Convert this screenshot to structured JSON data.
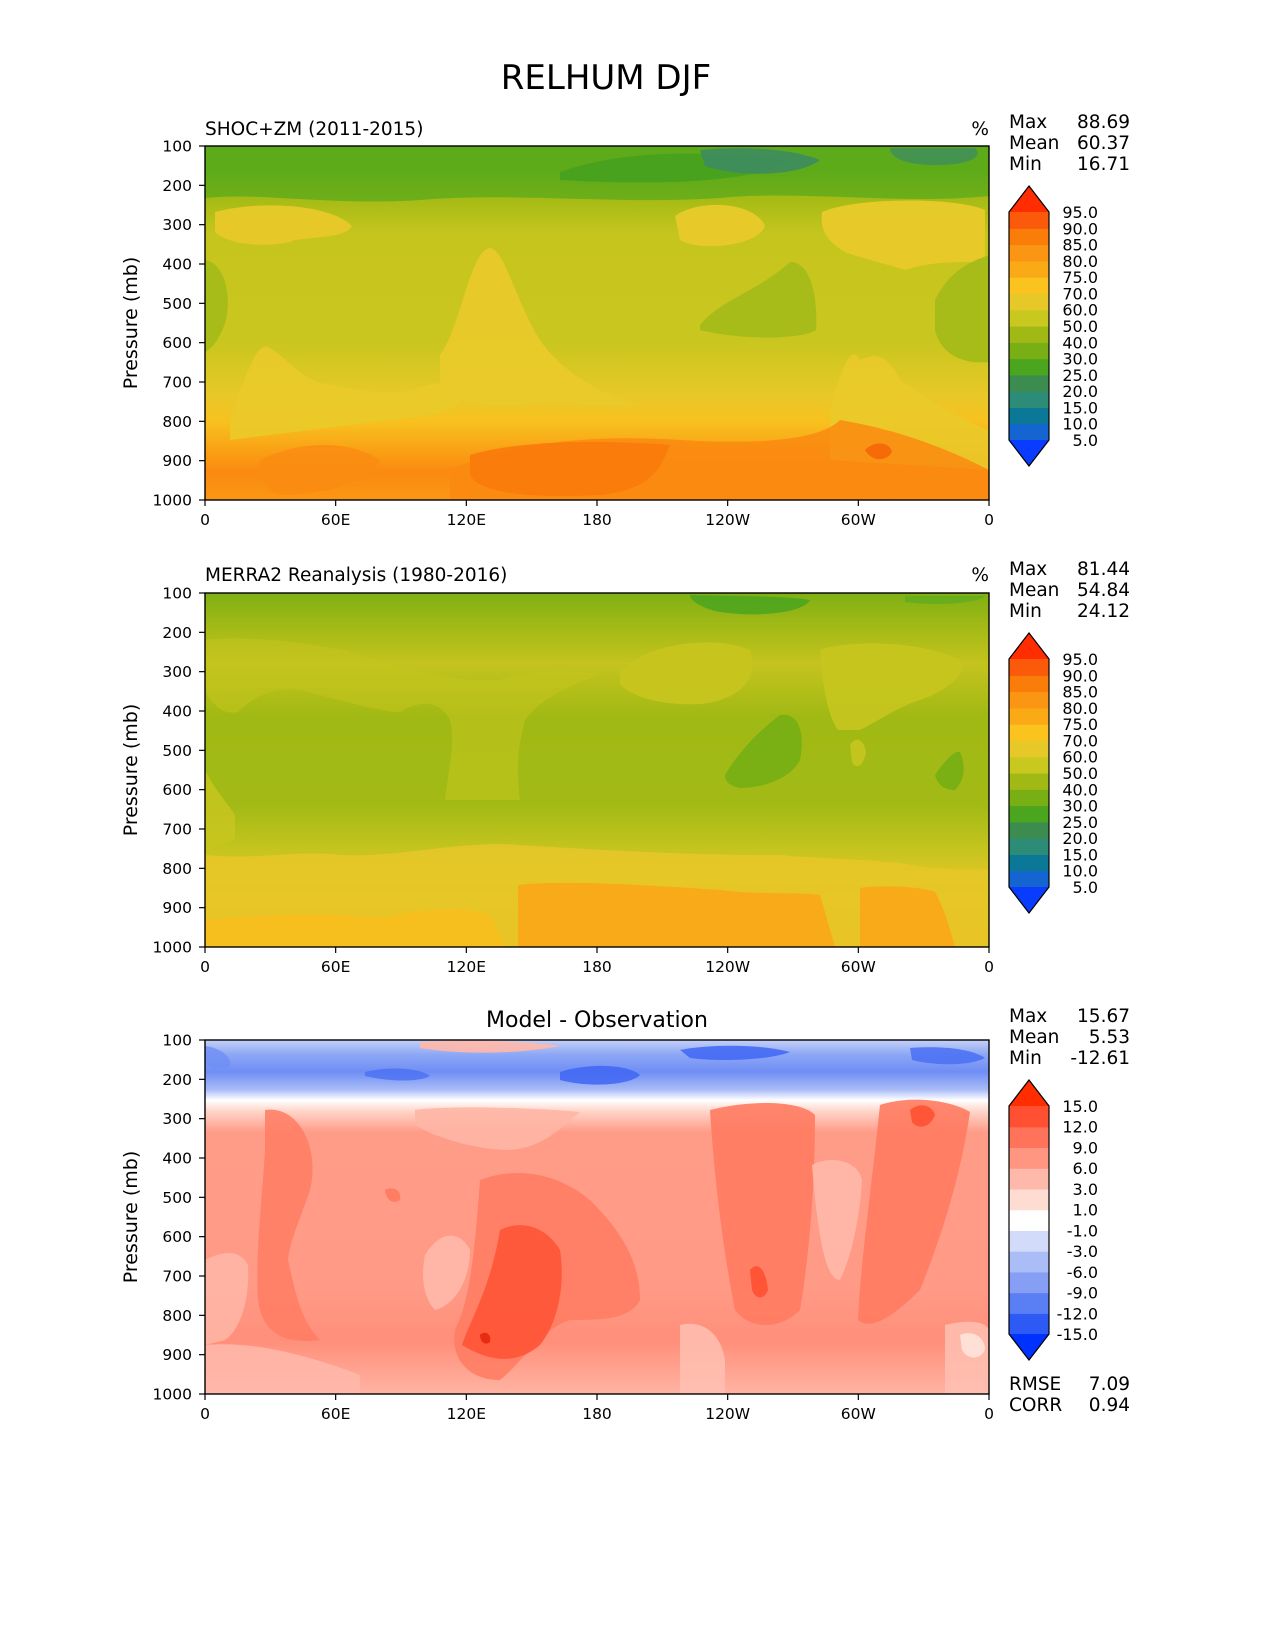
{
  "figure": {
    "title": "RELHUM DJF",
    "xtick_labels": [
      "0",
      "60E",
      "120E",
      "180",
      "120W",
      "60W",
      "0"
    ],
    "ytick_labels": [
      "100",
      "200",
      "300",
      "400",
      "500",
      "600",
      "700",
      "800",
      "900",
      "1000"
    ],
    "ylabel": "Pressure (mb)"
  },
  "chart_data": [
    {
      "type": "heatmap",
      "id": "model",
      "title": "SHOC+ZM (2011-2015)",
      "units": "%",
      "xlabel": "",
      "ylabel": "Pressure (mb)",
      "x": [
        0,
        60,
        120,
        180,
        240,
        300,
        360
      ],
      "xtick_labels": [
        "0",
        "60E",
        "120E",
        "180",
        "120W",
        "60W",
        "0"
      ],
      "y": [
        100,
        200,
        300,
        400,
        500,
        600,
        700,
        800,
        900,
        1000
      ],
      "ylim": [
        1000,
        100
      ],
      "stats": {
        "Max": "88.69",
        "Mean": "60.37",
        "Min": "16.71"
      },
      "colorbar": {
        "levels": [
          "5.0",
          "10.0",
          "15.0",
          "20.0",
          "25.0",
          "30.0",
          "40.0",
          "50.0",
          "60.0",
          "70.0",
          "75.0",
          "80.0",
          "85.0",
          "90.0",
          "95.0"
        ],
        "colors": [
          "#0a3cff",
          "#1464d2",
          "#0a7896",
          "#2d8c78",
          "#3c8c50",
          "#4ba51e",
          "#78af14",
          "#a0b914",
          "#c8c81e",
          "#e6c828",
          "#fac31e",
          "#faaa14",
          "#fa9614",
          "#fa7d0a",
          "#fa5a0a",
          "#ff2d00"
        ]
      }
    },
    {
      "type": "heatmap",
      "id": "obs",
      "title": "MERRA2 Reanalysis (1980-2016)",
      "units": "%",
      "xlabel": "",
      "ylabel": "Pressure (mb)",
      "x": [
        0,
        60,
        120,
        180,
        240,
        300,
        360
      ],
      "xtick_labels": [
        "0",
        "60E",
        "120E",
        "180",
        "120W",
        "60W",
        "0"
      ],
      "y": [
        100,
        200,
        300,
        400,
        500,
        600,
        700,
        800,
        900,
        1000
      ],
      "ylim": [
        1000,
        100
      ],
      "stats": {
        "Max": "81.44",
        "Mean": "54.84",
        "Min": "24.12"
      },
      "colorbar": {
        "levels": [
          "5.0",
          "10.0",
          "15.0",
          "20.0",
          "25.0",
          "30.0",
          "40.0",
          "50.0",
          "60.0",
          "70.0",
          "75.0",
          "80.0",
          "85.0",
          "90.0",
          "95.0"
        ],
        "colors": [
          "#0a3cff",
          "#1464d2",
          "#0a7896",
          "#2d8c78",
          "#3c8c50",
          "#4ba51e",
          "#78af14",
          "#a0b914",
          "#c8c81e",
          "#e6c828",
          "#fac31e",
          "#faaa14",
          "#fa9614",
          "#fa7d0a",
          "#fa5a0a",
          "#ff2d00"
        ]
      }
    },
    {
      "type": "heatmap",
      "id": "diff",
      "title": "Model - Observation",
      "units": "",
      "xlabel": "",
      "ylabel": "Pressure (mb)",
      "x": [
        0,
        60,
        120,
        180,
        240,
        300,
        360
      ],
      "xtick_labels": [
        "0",
        "60E",
        "120E",
        "180",
        "120W",
        "60W",
        "0"
      ],
      "y": [
        100,
        200,
        300,
        400,
        500,
        600,
        700,
        800,
        900,
        1000
      ],
      "ylim": [
        1000,
        100
      ],
      "stats": {
        "Max": "15.67",
        "Mean": "5.53",
        "Min": "-12.61"
      },
      "extra_stats": {
        "RMSE": "7.09",
        "CORR": "0.94"
      },
      "colorbar": {
        "levels": [
          "-15.0",
          "-12.0",
          "-9.0",
          "-6.0",
          "-3.0",
          "-1.0",
          "1.0",
          "3.0",
          "6.0",
          "9.0",
          "12.0",
          "15.0"
        ],
        "colors": [
          "#0032ff",
          "#2d5af5",
          "#5a7ff5",
          "#869ff5",
          "#aabdf7",
          "#d2dcfa",
          "#ffffff",
          "#ffdcd2",
          "#ffb9aa",
          "#ff9682",
          "#ff735a",
          "#ff5032",
          "#ff2d00"
        ]
      }
    }
  ]
}
